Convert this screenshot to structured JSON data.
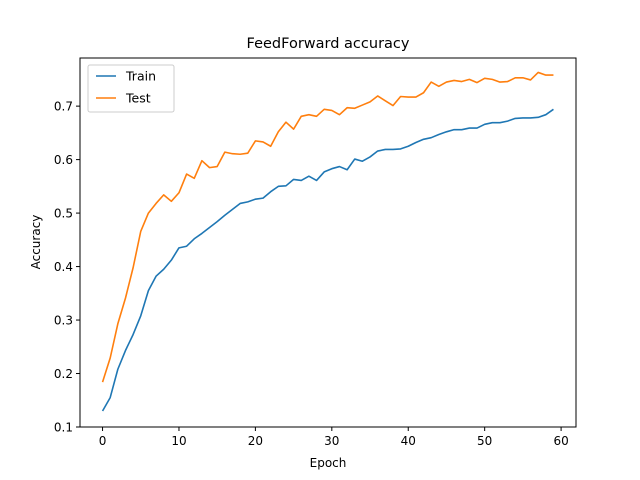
{
  "chart_data": {
    "type": "line",
    "title": "FeedForward accuracy",
    "xlabel": "Epoch",
    "ylabel": "Accuracy",
    "xlim": [
      -2.95,
      61.95
    ],
    "ylim": [
      0.1,
      0.79
    ],
    "xticks": [
      0,
      10,
      20,
      30,
      40,
      50,
      60
    ],
    "yticks": [
      0.1,
      0.2,
      0.3,
      0.4,
      0.5,
      0.6,
      0.7
    ],
    "grid": false,
    "legend_position": "upper left",
    "x": [
      0,
      1,
      2,
      3,
      4,
      5,
      6,
      7,
      8,
      9,
      10,
      11,
      12,
      13,
      14,
      15,
      16,
      17,
      18,
      19,
      20,
      21,
      22,
      23,
      24,
      25,
      26,
      27,
      28,
      29,
      30,
      31,
      32,
      33,
      34,
      35,
      36,
      37,
      38,
      39,
      40,
      41,
      42,
      43,
      44,
      45,
      46,
      47,
      48,
      49,
      50,
      51,
      52,
      53,
      54,
      55,
      56,
      57,
      58,
      59
    ],
    "series": [
      {
        "name": "Train",
        "color": "#1f77b4",
        "values": [
          0.13,
          0.155,
          0.208,
          0.243,
          0.273,
          0.308,
          0.355,
          0.382,
          0.395,
          0.412,
          0.435,
          0.438,
          0.452,
          0.462,
          0.473,
          0.484,
          0.496,
          0.507,
          0.518,
          0.521,
          0.526,
          0.528,
          0.54,
          0.55,
          0.551,
          0.563,
          0.561,
          0.569,
          0.561,
          0.577,
          0.583,
          0.587,
          0.581,
          0.601,
          0.597,
          0.605,
          0.616,
          0.619,
          0.619,
          0.62,
          0.625,
          0.632,
          0.638,
          0.641,
          0.647,
          0.652,
          0.656,
          0.656,
          0.659,
          0.659,
          0.666,
          0.669,
          0.669,
          0.672,
          0.677,
          0.678,
          0.678,
          0.679,
          0.684,
          0.694
        ]
      },
      {
        "name": "Test",
        "color": "#ff7f0e",
        "values": [
          0.184,
          0.229,
          0.293,
          0.341,
          0.398,
          0.466,
          0.5,
          0.518,
          0.534,
          0.522,
          0.538,
          0.573,
          0.565,
          0.598,
          0.585,
          0.587,
          0.614,
          0.611,
          0.61,
          0.612,
          0.635,
          0.633,
          0.625,
          0.652,
          0.67,
          0.657,
          0.681,
          0.684,
          0.681,
          0.694,
          0.692,
          0.684,
          0.697,
          0.696,
          0.702,
          0.708,
          0.719,
          0.71,
          0.701,
          0.718,
          0.717,
          0.717,
          0.725,
          0.745,
          0.737,
          0.745,
          0.748,
          0.746,
          0.75,
          0.744,
          0.752,
          0.75,
          0.745,
          0.746,
          0.753,
          0.753,
          0.749,
          0.763,
          0.758,
          0.758
        ]
      }
    ]
  }
}
